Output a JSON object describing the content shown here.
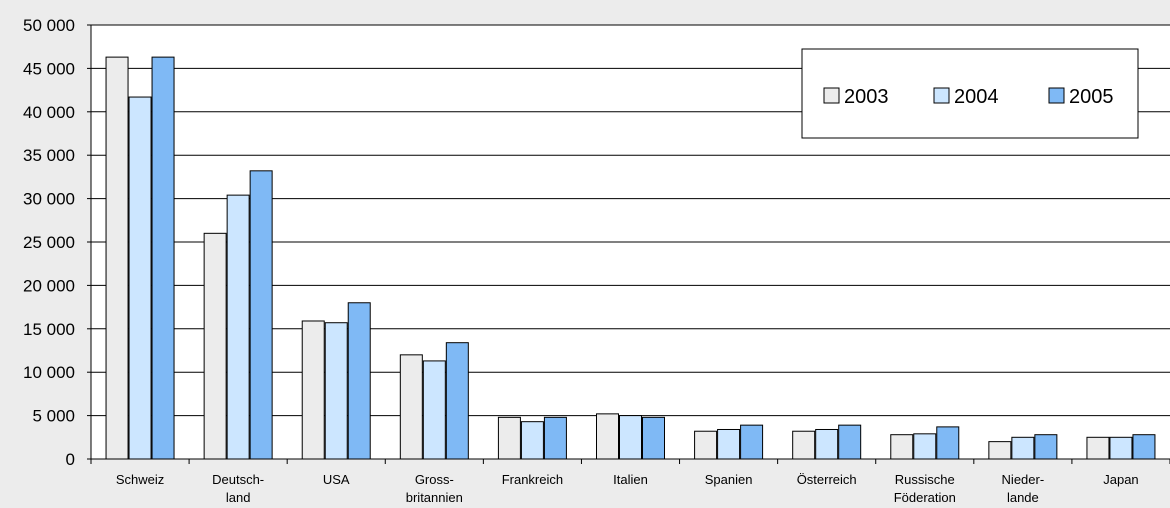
{
  "chart_data": {
    "type": "bar",
    "categories": [
      [
        "Schweiz"
      ],
      [
        "Deutsch-",
        "land"
      ],
      [
        "USA"
      ],
      [
        "Gross-",
        "britannien"
      ],
      [
        "Frankreich"
      ],
      [
        "Italien"
      ],
      [
        "Spanien"
      ],
      [
        "Österreich"
      ],
      [
        "Russische",
        "Föderation"
      ],
      [
        "Nieder-",
        "lande"
      ],
      [
        "Japan"
      ]
    ],
    "series": [
      {
        "name": "2003",
        "color": "#ececec",
        "values": [
          46300,
          26000,
          15900,
          12000,
          4800,
          5200,
          3200,
          3200,
          2800,
          2000,
          2500
        ]
      },
      {
        "name": "2004",
        "color": "#cce6ff",
        "values": [
          41700,
          30400,
          15700,
          11300,
          4300,
          5000,
          3400,
          3400,
          2900,
          2500,
          2500
        ]
      },
      {
        "name": "2005",
        "color": "#7fb9f5",
        "values": [
          46300,
          33200,
          18000,
          13400,
          4800,
          4800,
          3900,
          3900,
          3700,
          2800,
          2800
        ]
      }
    ],
    "yticks": [
      "0",
      "5 000",
      "10 000",
      "15 000",
      "20 000",
      "25 000",
      "30 000",
      "35 000",
      "40 000",
      "45 000",
      "50 000"
    ],
    "ylim": [
      0,
      50000
    ],
    "ytick_step": 5000,
    "grid": true,
    "legend_position": "top-right",
    "bar_outline": "#000000",
    "gridline_color": "#000000",
    "plot_background": "#ffffff"
  }
}
